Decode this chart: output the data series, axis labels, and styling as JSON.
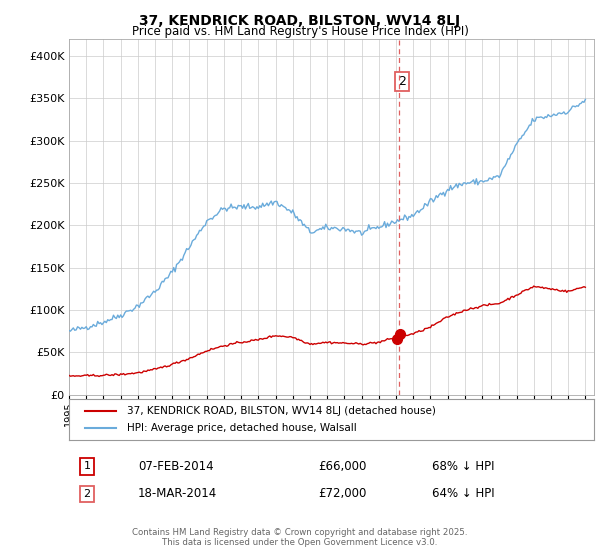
{
  "title": "37, KENDRICK ROAD, BILSTON, WV14 8LJ",
  "subtitle": "Price paid vs. HM Land Registry's House Price Index (HPI)",
  "hpi_color": "#6aabdb",
  "price_color": "#cc0000",
  "vline_color": "#e06060",
  "vline_x": 2014.2,
  "ylim": [
    0,
    420000
  ],
  "xlim": [
    1995,
    2025.5
  ],
  "yticks": [
    0,
    50000,
    100000,
    150000,
    200000,
    250000,
    300000,
    350000,
    400000
  ],
  "legend_line1": "37, KENDRICK ROAD, BILSTON, WV14 8LJ (detached house)",
  "legend_line2": "HPI: Average price, detached house, Walsall",
  "footer": "Contains HM Land Registry data © Crown copyright and database right 2025.\nThis data is licensed under the Open Government Licence v3.0.",
  "background_color": "#ffffff",
  "grid_color": "#cccccc",
  "hpi_base_years": [
    1995,
    1996,
    1997,
    1998,
    1999,
    2000,
    2001,
    2002,
    2003,
    2004,
    2005,
    2006,
    2007,
    2008,
    2009,
    2010,
    2011,
    2012,
    2013,
    2014,
    2015,
    2016,
    2017,
    2018,
    2019,
    2020,
    2021,
    2022,
    2023,
    2024,
    2025
  ],
  "hpi_base_vals": [
    75000,
    80000,
    86000,
    94000,
    105000,
    122000,
    145000,
    175000,
    205000,
    220000,
    222000,
    222000,
    228000,
    215000,
    192000,
    197000,
    196000,
    191000,
    198000,
    205000,
    212000,
    228000,
    243000,
    250000,
    252000,
    258000,
    295000,
    325000,
    330000,
    335000,
    348000
  ],
  "price_base_years": [
    1995,
    1996,
    1997,
    1998,
    1999,
    2000,
    2001,
    2002,
    2003,
    2004,
    2005,
    2006,
    2007,
    2008,
    2009,
    2010,
    2011,
    2012,
    2013,
    2014,
    2015,
    2016,
    2017,
    2018,
    2019,
    2020,
    2021,
    2022,
    2023,
    2024,
    2025
  ],
  "price_base_vals": [
    22000,
    22500,
    23000,
    24000,
    26000,
    30000,
    36000,
    43000,
    52000,
    58000,
    62000,
    65000,
    70000,
    68000,
    60000,
    62000,
    61000,
    60000,
    62000,
    68000,
    72000,
    80000,
    92000,
    100000,
    105000,
    108000,
    118000,
    128000,
    125000,
    122000,
    128000
  ],
  "t1_x": 2014.08,
  "t1_y": 66000,
  "t2_x": 2014.22,
  "t2_y": 72000
}
